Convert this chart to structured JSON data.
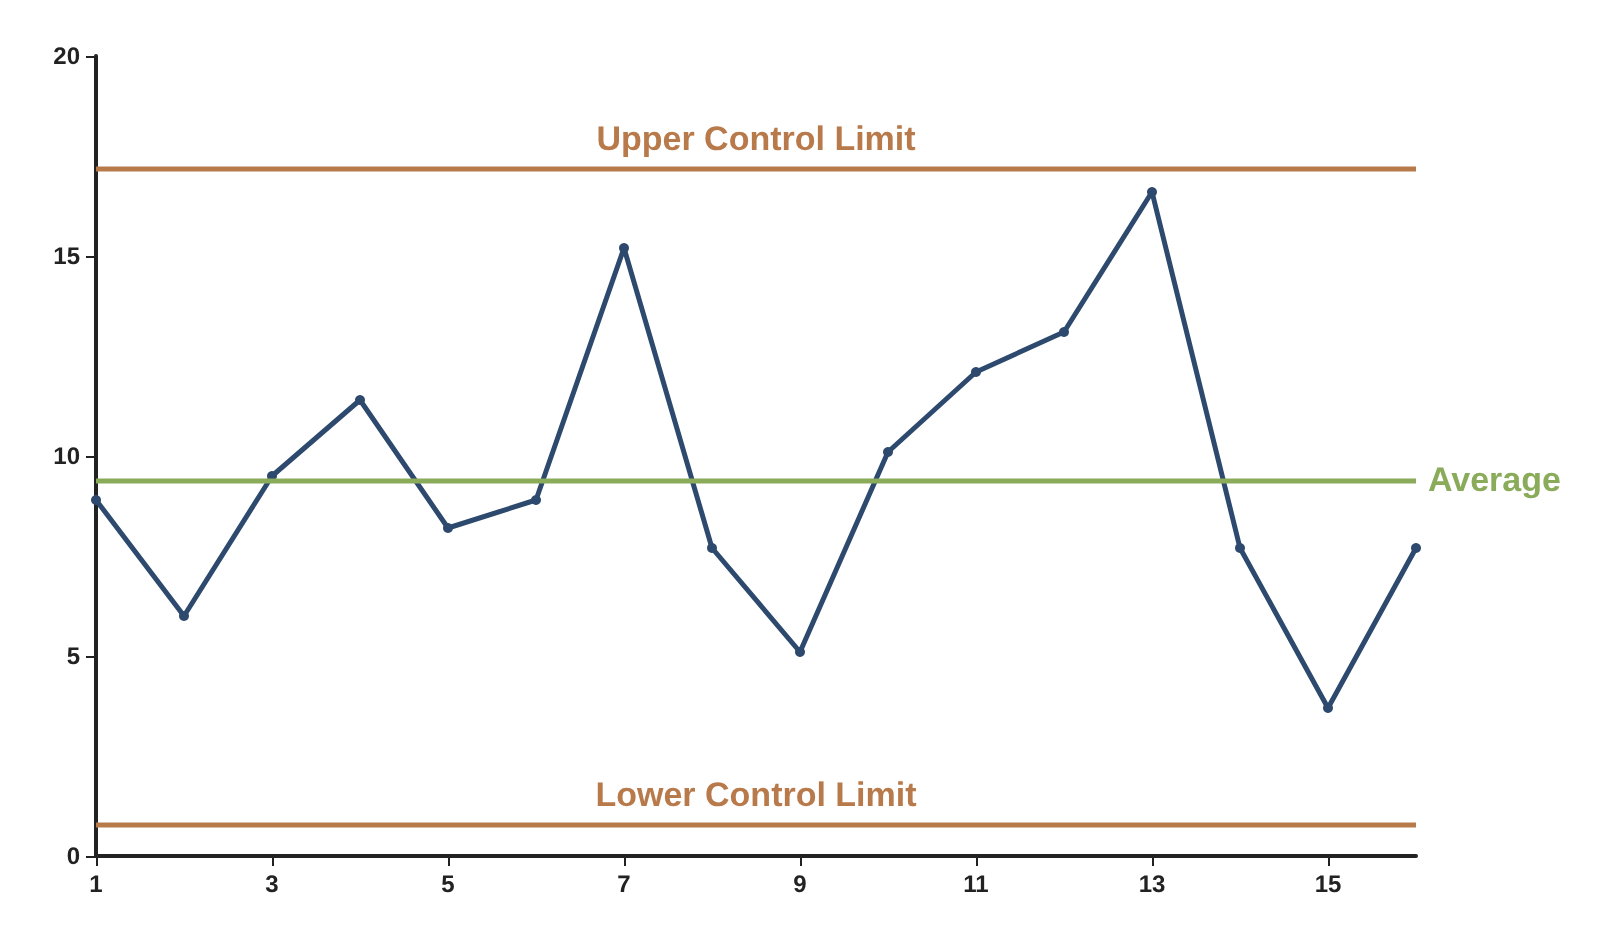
{
  "chart_data": {
    "type": "line",
    "x": [
      1,
      2,
      3,
      4,
      5,
      6,
      7,
      8,
      9,
      10,
      11,
      12,
      13,
      14,
      15,
      16
    ],
    "series": [
      {
        "color": "#2d4a6e",
        "values": [
          8.9,
          6.0,
          9.5,
          11.4,
          8.2,
          8.9,
          15.2,
          7.7,
          5.1,
          10.1,
          12.1,
          13.1,
          16.6,
          7.7,
          3.7,
          7.7
        ]
      }
    ],
    "xlim": [
      1,
      16
    ],
    "xticks": [
      1,
      3,
      5,
      7,
      9,
      11,
      13,
      15
    ],
    "ylim": [
      0,
      20
    ],
    "yticks": [
      0,
      5,
      10,
      15,
      20
    ],
    "grid": false,
    "marker": "circle",
    "line_style": "solid",
    "ref_lines": [
      {
        "axis": "y",
        "value": 17.2,
        "label": "Upper Control Limit",
        "color": "#b87a4b"
      },
      {
        "axis": "y",
        "value": 9.4,
        "label": "Average",
        "color": "#8aac5a"
      },
      {
        "axis": "y",
        "value": 0.8,
        "label": "Lower Control Limit",
        "color": "#b87a4b"
      }
    ]
  }
}
